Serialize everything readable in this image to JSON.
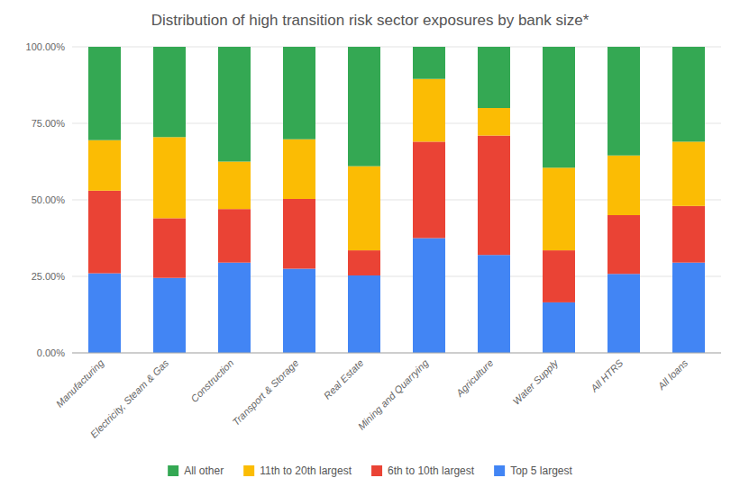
{
  "chart_data": {
    "type": "bar",
    "stacked": true,
    "title": "Distribution of high transition risk sector exposures by bank size*",
    "categories": [
      "Manufacturing",
      "Electricity, Steam & Gas",
      "Construction",
      "Transport & Storage",
      "Real Estate",
      "Mining and Quarrying",
      "Agriculture",
      "Water Supply",
      "All HTRS",
      "All loans"
    ],
    "series": [
      {
        "name": "Top 5 largest",
        "color": "#4285F4",
        "values": [
          0.26,
          0.245,
          0.295,
          0.275,
          0.253,
          0.375,
          0.32,
          0.165,
          0.258,
          0.295
        ]
      },
      {
        "name": "6th to 10th largest",
        "color": "#EA4335",
        "values": [
          0.27,
          0.195,
          0.175,
          0.228,
          0.082,
          0.315,
          0.39,
          0.17,
          0.192,
          0.185
        ]
      },
      {
        "name": "11th to 20th largest",
        "color": "#FBBC04",
        "values": [
          0.165,
          0.265,
          0.155,
          0.195,
          0.275,
          0.205,
          0.09,
          0.27,
          0.195,
          0.21
        ]
      },
      {
        "name": "All other",
        "color": "#34A853",
        "values": [
          0.305,
          0.295,
          0.375,
          0.302,
          0.39,
          0.105,
          0.2,
          0.395,
          0.355,
          0.31
        ]
      }
    ],
    "ylim": [
      0,
      1.0
    ],
    "yticks": [
      {
        "value": 0.0,
        "label": "0.00%"
      },
      {
        "value": 0.25,
        "label": "25.00%"
      },
      {
        "value": 0.5,
        "label": "50.00%"
      },
      {
        "value": 0.75,
        "label": "75.00%"
      },
      {
        "value": 1.0,
        "label": "100.00%"
      }
    ],
    "grid": true,
    "legend": "bottom"
  }
}
